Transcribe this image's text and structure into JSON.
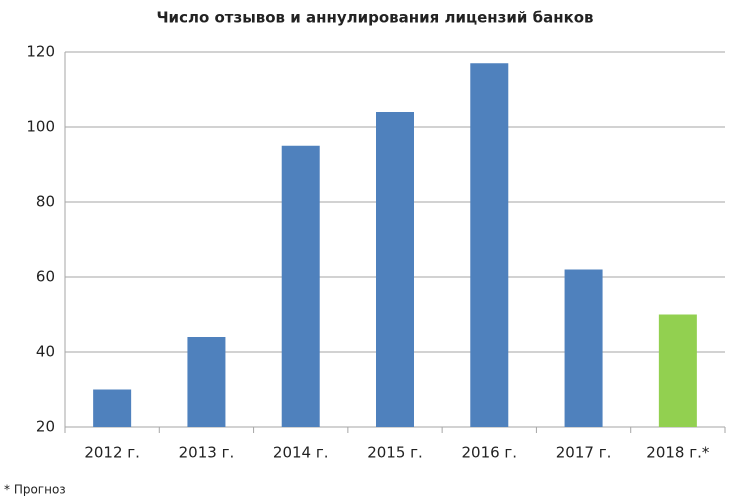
{
  "chart_data": {
    "type": "bar",
    "title": "Число отзывов и аннулирования лицензий банков",
    "categories": [
      "2012 г.",
      "2013 г.",
      "2014 г.",
      "2015 г.",
      "2016 г.",
      "2017 г.",
      "2018 г.*"
    ],
    "values": [
      30,
      44,
      95,
      104,
      117,
      62,
      50
    ],
    "colors": [
      "#4f81bd",
      "#4f81bd",
      "#4f81bd",
      "#4f81bd",
      "#4f81bd",
      "#4f81bd",
      "#92d050"
    ],
    "ylim": [
      20,
      120
    ],
    "yticks": [
      20,
      40,
      60,
      80,
      100,
      120
    ],
    "grid": true,
    "footnote": "* Прогноз"
  }
}
